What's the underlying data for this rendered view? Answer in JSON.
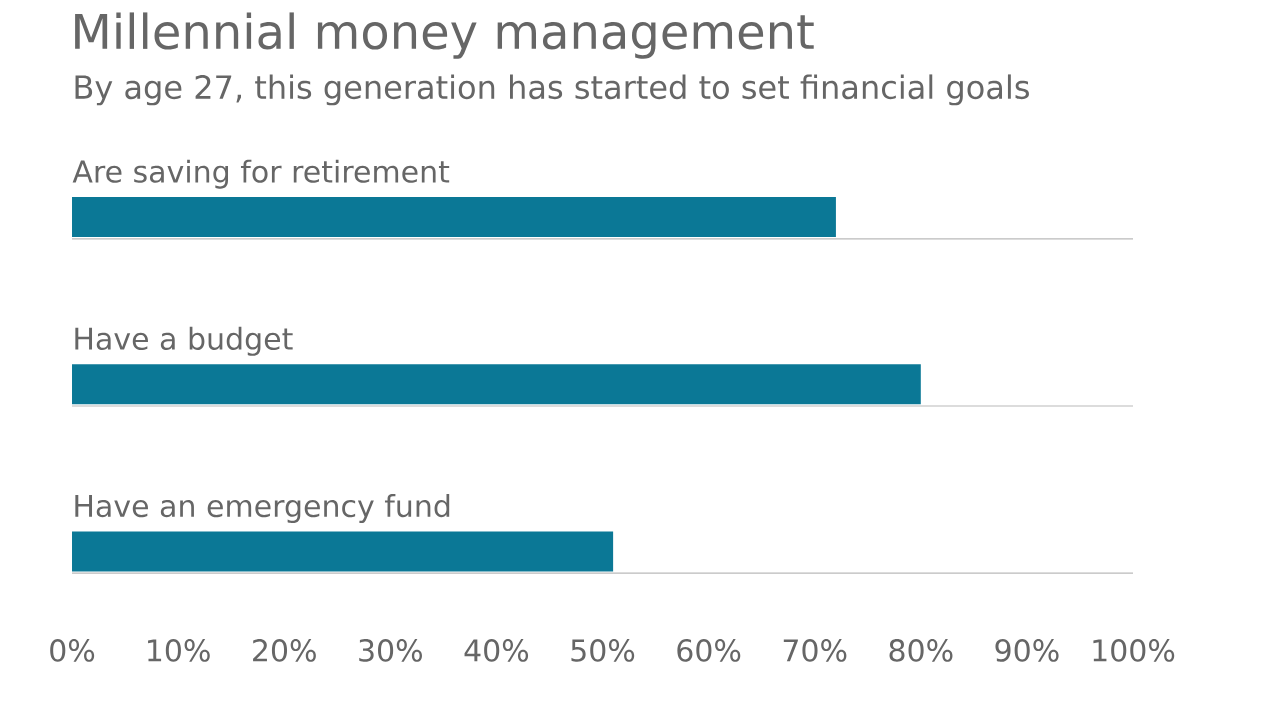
{
  "chart_data": {
    "type": "bar",
    "orientation": "horizontal",
    "title": "Millennial money management",
    "subtitle": "By age 27, this generation has started to set financial goals",
    "categories": [
      "Are saving for retirement",
      "Have a budget",
      "Have an emergency fund"
    ],
    "values": [
      72,
      80,
      51
    ],
    "color": "#0b7896",
    "xlim": [
      0,
      100
    ],
    "xticks": [
      {
        "value": 0,
        "label": "0%"
      },
      {
        "value": 10,
        "label": "10%"
      },
      {
        "value": 20,
        "label": "20%"
      },
      {
        "value": 30,
        "label": "30%"
      },
      {
        "value": 40,
        "label": "40%"
      },
      {
        "value": 50,
        "label": "50%"
      },
      {
        "value": 60,
        "label": "60%"
      },
      {
        "value": 70,
        "label": "70%"
      },
      {
        "value": 80,
        "label": "80%"
      },
      {
        "value": 90,
        "label": "90%"
      },
      {
        "value": 100,
        "label": "100%"
      }
    ]
  }
}
